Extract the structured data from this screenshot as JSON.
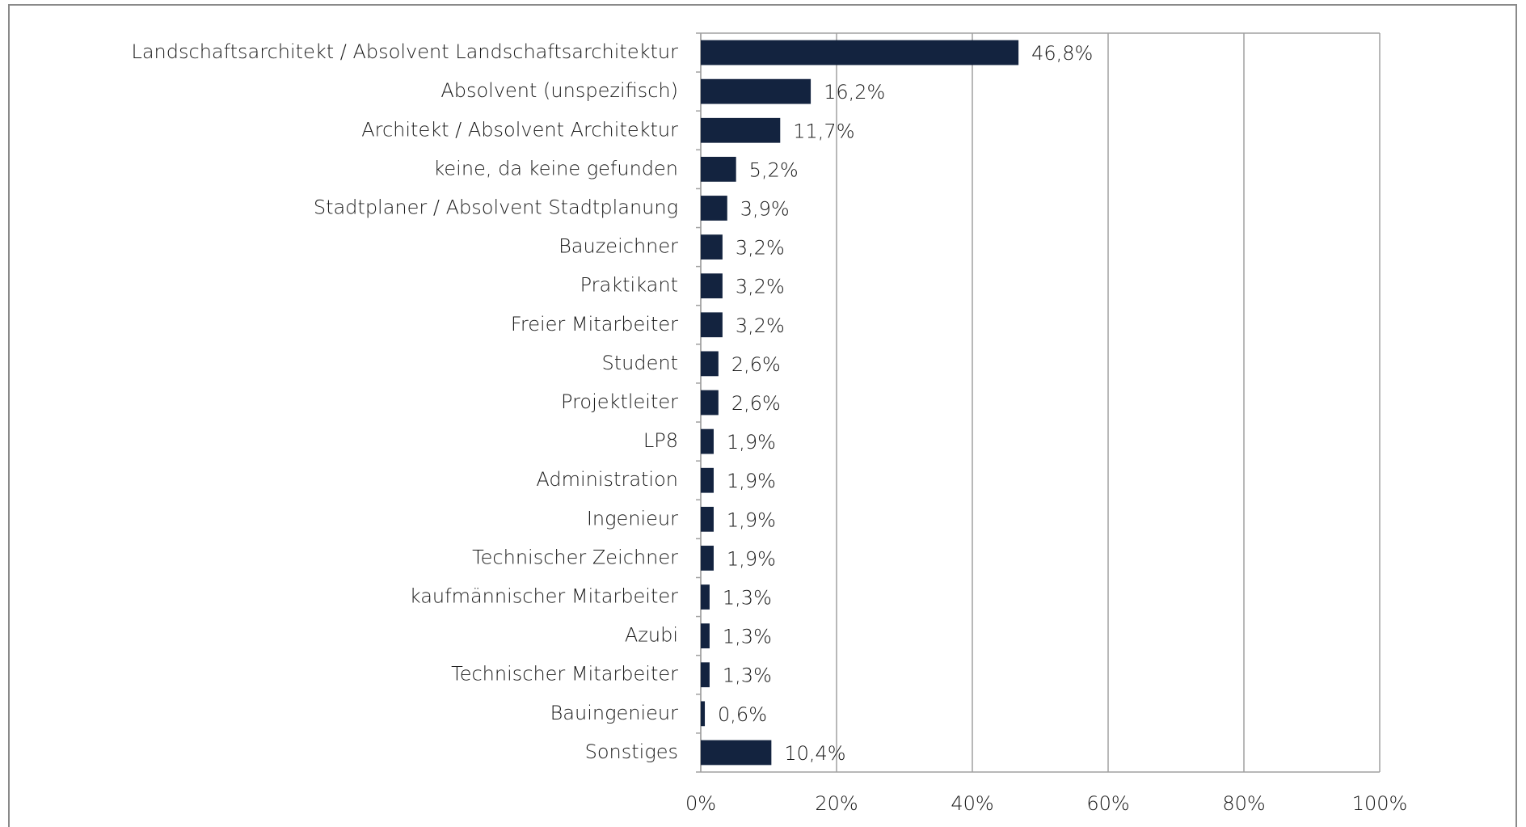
{
  "chart_data": {
    "type": "bar",
    "orientation": "horizontal",
    "categories": [
      "Landschaftsarchitekt / Absolvent Landschaftsarchitektur",
      "Absolvent (unspezifisch)",
      "Architekt / Absolvent Architektur",
      "keine, da keine gefunden",
      "Stadtplaner / Absolvent Stadtplanung",
      "Bauzeichner",
      "Praktikant",
      "Freier Mitarbeiter",
      "Student",
      "Projektleiter",
      "LP8",
      "Administration",
      "Ingenieur",
      "Technischer Zeichner",
      "kaufmännischer Mitarbeiter",
      "Azubi",
      "Technischer Mitarbeiter",
      "Bauingenieur",
      "Sonstiges"
    ],
    "values": [
      46.8,
      16.2,
      11.7,
      5.2,
      3.9,
      3.2,
      3.2,
      3.2,
      2.6,
      2.6,
      1.9,
      1.9,
      1.9,
      1.9,
      1.3,
      1.3,
      1.3,
      0.6,
      10.4
    ],
    "value_labels": [
      "46,8%",
      "16,2%",
      "11,7%",
      "5,2%",
      "3,9%",
      "3,2%",
      "3,2%",
      "3,2%",
      "2,6%",
      "2,6%",
      "1,9%",
      "1,9%",
      "1,9%",
      "1,9%",
      "1,3%",
      "1,3%",
      "1,3%",
      "0,6%",
      "10,4%"
    ],
    "color": "#13233f",
    "xlim": [
      0,
      100
    ],
    "xticks": [
      {
        "value": 0,
        "label": "0%"
      },
      {
        "value": 20,
        "label": "20%"
      },
      {
        "value": 40,
        "label": "40%"
      },
      {
        "value": 60,
        "label": "60%"
      },
      {
        "value": 80,
        "label": "80%"
      },
      {
        "value": 100,
        "label": "100%"
      }
    ],
    "grid": true
  }
}
